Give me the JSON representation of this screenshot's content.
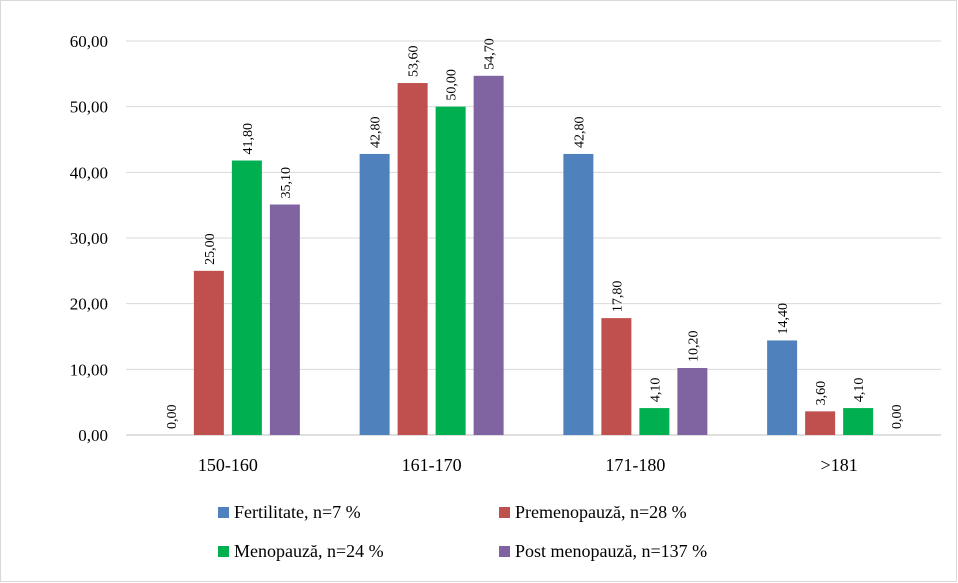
{
  "chart_data": {
    "type": "bar",
    "title": "",
    "xlabel": "",
    "ylabel": "",
    "categories": [
      "150-160",
      "161-170",
      "171-180",
      ">181"
    ],
    "ylim": [
      0,
      60
    ],
    "yticks": [
      0,
      10,
      20,
      30,
      40,
      50,
      60
    ],
    "ytick_labels": [
      "0,00",
      "10,00",
      "20,00",
      "30,00",
      "40,00",
      "50,00",
      "60,00"
    ],
    "grid": true,
    "legend_position": "bottom",
    "series": [
      {
        "name": "Fertilitate, n=7 %",
        "color": "#4f81bd",
        "values": [
          0,
          42.8,
          42.8,
          14.4
        ],
        "labels": [
          "0,00",
          "42,80",
          "42,80",
          "14,40"
        ]
      },
      {
        "name": "Premenopauză, n=28 %",
        "color": "#c0504d",
        "values": [
          25.0,
          53.6,
          17.8,
          3.6
        ],
        "labels": [
          "25,00",
          "53,60",
          "17,80",
          "3,60"
        ]
      },
      {
        "name": "Menopauză, n=24 %",
        "color": "#00b050",
        "values": [
          41.8,
          50.0,
          4.1,
          4.1
        ],
        "labels": [
          "41,80",
          "50,00",
          "4,10",
          "4,10"
        ]
      },
      {
        "name": "Post menopauză, n=137 %",
        "color": "#8064a2",
        "values": [
          35.1,
          54.7,
          10.2,
          0
        ],
        "labels": [
          "35,10",
          "54,70",
          "10,20",
          "0,00"
        ]
      }
    ]
  }
}
